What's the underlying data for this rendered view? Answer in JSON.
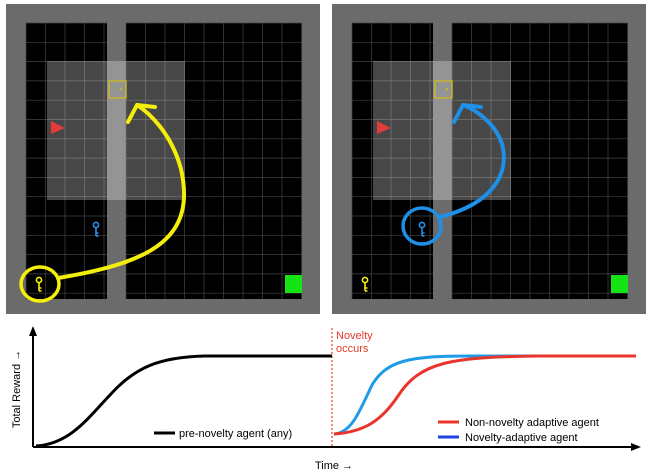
{
  "panels": [
    {
      "id": "left",
      "arrow_color": "#f4ef0a",
      "light_key_color": "#2f8fe6",
      "highlighted_key_color": "#f4ef0a",
      "highlight_circle": "yellow"
    },
    {
      "id": "right",
      "arrow_color": "#1e90e8",
      "light_key_color": "#f4ef0a",
      "highlighted_key_color": "#1e90e8",
      "highlight_circle": "blue"
    }
  ],
  "grid_colors": {
    "wall": "#6b6b6b",
    "floor": "#000000",
    "gridline": "#444444",
    "view_area": "#ffffff",
    "door": "#c6b42c",
    "goal": "#16e316",
    "agent": "#e23b3b"
  },
  "chart_data": {
    "type": "line",
    "xlabel": "Time →",
    "ylabel": "Total Reward →",
    "annotation": {
      "text_line1": "Novelty",
      "text_line2": "occurs",
      "color": "#e23b2b"
    },
    "series": [
      {
        "name": "pre-novelty agent (any)",
        "color": "#000000"
      },
      {
        "name": "Non-novelty adaptive agent",
        "color": "#e8352b"
      },
      {
        "name": "Novelty-adaptive agent",
        "color": "#1f9be8"
      }
    ],
    "legend_colors": [
      "#e8352b",
      "#1b44e0"
    ]
  }
}
